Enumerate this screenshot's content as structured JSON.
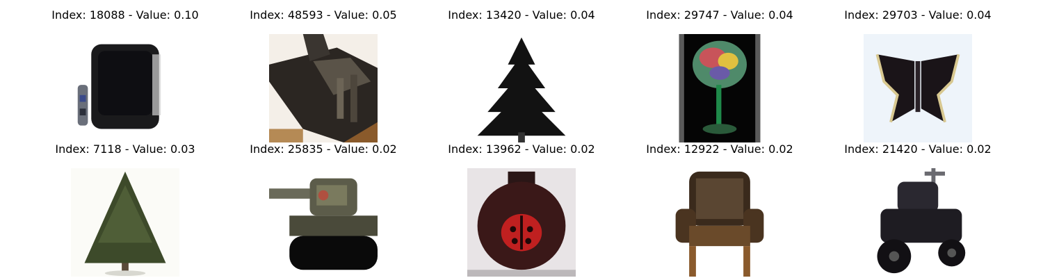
{
  "figure": {
    "panels": [
      {
        "index": "18088",
        "value": "0.10",
        "title": "Index: 18088 - Value: 0.10",
        "subject": "tv-with-remote"
      },
      {
        "index": "48593",
        "value": "0.05",
        "title": "Index: 48593 - Value: 0.05",
        "subject": "tank-vehicle"
      },
      {
        "index": "13420",
        "value": "0.04",
        "title": "Index: 13420 - Value: 0.04",
        "subject": "pine-tree-silhouette"
      },
      {
        "index": "29747",
        "value": "0.04",
        "title": "Index: 29747 - Value: 0.04",
        "subject": "glass-with-colorful-drink"
      },
      {
        "index": "29703",
        "value": "0.04",
        "title": "Index: 29703 - Value: 0.04",
        "subject": "butterfly"
      },
      {
        "index": "7118",
        "value": "0.03",
        "title": "Index: 7118 - Value: 0.03",
        "subject": "evergreen-tree"
      },
      {
        "index": "25835",
        "value": "0.02",
        "title": "Index: 25835 - Value: 0.02",
        "subject": "toy-tank"
      },
      {
        "index": "13962",
        "value": "0.02",
        "title": "Index: 13962 - Value: 0.02",
        "subject": "ladybug-jar"
      },
      {
        "index": "12922",
        "value": "0.02",
        "title": "Index: 12922 - Value: 0.02",
        "subject": "wingback-chair"
      },
      {
        "index": "21420",
        "value": "0.02",
        "title": "Index: 21420 - Value: 0.02",
        "subject": "riding-lawn-mower"
      }
    ]
  }
}
